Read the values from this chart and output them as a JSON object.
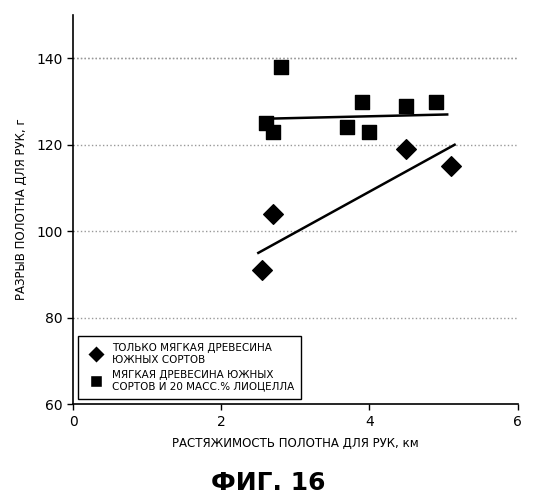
{
  "title": "ФИГ. 16",
  "xlabel": "РАСТЯЖИМОСТЬ ПОЛОТНА ДЛЯ РУК, км",
  "ylabel": "РАЗРЫВ ПОЛОТНА ДЛЯ РУК, г",
  "xlim": [
    0,
    6
  ],
  "ylim": [
    60,
    150
  ],
  "xticks": [
    0,
    2,
    4,
    6
  ],
  "yticks": [
    60,
    80,
    100,
    120,
    140
  ],
  "grid_yticks": [
    80,
    100,
    120,
    140
  ],
  "grid_color": "#999999",
  "background_color": "#ffffff",
  "diamond_points": [
    [
      2.55,
      91
    ],
    [
      2.7,
      104
    ],
    [
      4.5,
      119
    ],
    [
      5.1,
      115
    ]
  ],
  "square_points": [
    [
      2.6,
      125
    ],
    [
      2.7,
      123
    ],
    [
      2.8,
      138
    ],
    [
      3.7,
      124
    ],
    [
      3.9,
      130
    ],
    [
      4.0,
      123
    ],
    [
      4.5,
      129
    ],
    [
      4.9,
      130
    ]
  ],
  "diamond_line": [
    [
      2.5,
      95
    ],
    [
      5.15,
      120
    ]
  ],
  "square_line": [
    [
      2.55,
      126
    ],
    [
      5.05,
      127
    ]
  ],
  "legend1_line1": "ТОЛЬКО МЯГКАЯ ДРЕВЕСИНА",
  "legend1_line2": "ЮЖНЫХ СОРТОВ",
  "legend2_line1": "МЯГКАЯ ДРЕВЕСИНА ЮЖНЫХ",
  "legend2_line2": "СОРТОВ И 20 МАСС.% ЛИОЦЕЛЛА",
  "marker_color": "#000000",
  "line_color": "#000000",
  "marker_size": 100
}
